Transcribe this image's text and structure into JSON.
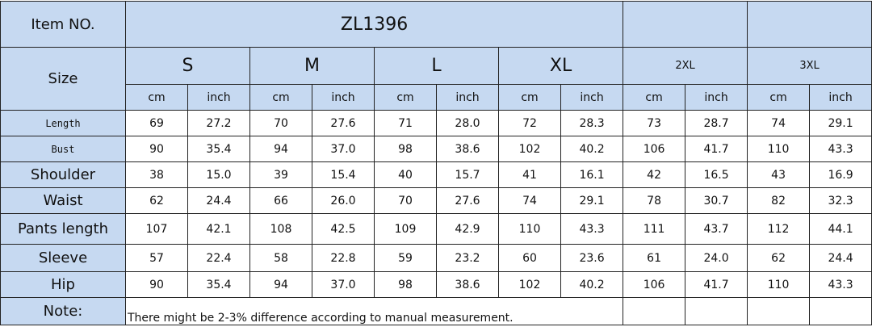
{
  "header": {
    "item_label": "Item NO.",
    "item_no": "ZL1396"
  },
  "size_label": "Size",
  "sizes": [
    "S",
    "M",
    "L",
    "XL",
    "2XL",
    "3XL"
  ],
  "units": [
    "cm",
    "inch"
  ],
  "rows": [
    {
      "label": "Length",
      "values": [
        "69",
        "27.2",
        "70",
        "27.6",
        "71",
        "28.0",
        "72",
        "28.3",
        "73",
        "28.7",
        "74",
        "29.1"
      ]
    },
    {
      "label": "Bust",
      "values": [
        "90",
        "35.4",
        "94",
        "37.0",
        "98",
        "38.6",
        "102",
        "40.2",
        "106",
        "41.7",
        "110",
        "43.3"
      ]
    },
    {
      "label": "Shoulder",
      "values": [
        "38",
        "15.0",
        "39",
        "15.4",
        "40",
        "15.7",
        "41",
        "16.1",
        "42",
        "16.5",
        "43",
        "16.9"
      ]
    },
    {
      "label": "Waist",
      "values": [
        "62",
        "24.4",
        "66",
        "26.0",
        "70",
        "27.6",
        "74",
        "29.1",
        "78",
        "30.7",
        "82",
        "32.3"
      ]
    },
    {
      "label": "Pants length",
      "values": [
        "107",
        "42.1",
        "108",
        "42.5",
        "109",
        "42.9",
        "110",
        "43.3",
        "111",
        "43.7",
        "112",
        "44.1"
      ]
    },
    {
      "label": "Sleeve",
      "values": [
        "57",
        "22.4",
        "58",
        "22.8",
        "59",
        "23.2",
        "60",
        "23.6",
        "61",
        "24.0",
        "62",
        "24.4"
      ]
    },
    {
      "label": "Hip",
      "values": [
        "90",
        "35.4",
        "94",
        "37.0",
        "98",
        "38.6",
        "102",
        "40.2",
        "106",
        "41.7",
        "110",
        "43.3"
      ]
    }
  ],
  "note": {
    "label": "Note:",
    "text": "There might be 2-3% difference according to manual measurement."
  }
}
